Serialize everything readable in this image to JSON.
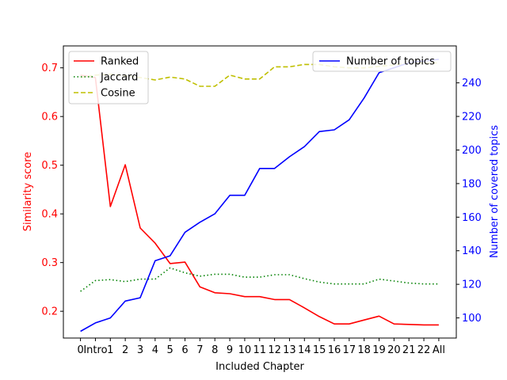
{
  "chart_data": {
    "type": "line",
    "categories": [
      "0",
      "Intro",
      "1",
      "2",
      "3",
      "4",
      "5",
      "6",
      "7",
      "8",
      "9",
      "10",
      "11",
      "12",
      "13",
      "14",
      "15",
      "16",
      "17",
      "18",
      "19",
      "20",
      "21",
      "22",
      "All"
    ],
    "xlabel": "Included Chapter",
    "ylabel_left": "Similarity score",
    "ylabel_right": "Number of covered topics",
    "ylim_left": [
      0.145,
      0.745
    ],
    "ylim_right": [
      88.0,
      262.0
    ],
    "yticks_left": [
      "0.2",
      "0.3",
      "0.4",
      "0.5",
      "0.6",
      "0.7"
    ],
    "yticks_right": [
      "100",
      "120",
      "140",
      "160",
      "180",
      "200",
      "220",
      "240"
    ],
    "colors": {
      "left_axis": "#ff0000",
      "right_axis": "#0000ff"
    },
    "series_left": [
      {
        "name": "Ranked",
        "color": "#ff0000",
        "style": "solid",
        "values": [
          0.685,
          0.68,
          0.415,
          0.501,
          0.371,
          0.34,
          0.298,
          0.301,
          0.25,
          0.238,
          0.236,
          0.23,
          0.23,
          0.224,
          0.224,
          0.207,
          0.189,
          0.174,
          0.174,
          0.182,
          0.19,
          0.174,
          0.173,
          0.172,
          0.172
        ]
      },
      {
        "name": "Jaccard",
        "color": "#008000",
        "style": "dotted",
        "values": [
          0.241,
          0.263,
          0.265,
          0.261,
          0.266,
          0.266,
          0.289,
          0.279,
          0.272,
          0.276,
          0.276,
          0.27,
          0.27,
          0.275,
          0.275,
          0.267,
          0.26,
          0.256,
          0.256,
          0.256,
          0.266,
          0.262,
          0.258,
          0.256,
          0.256
        ]
      },
      {
        "name": "Cosine",
        "color": "#bfbf00",
        "style": "dashed",
        "values": [
          0.68,
          0.685,
          0.687,
          0.684,
          0.68,
          0.675,
          0.681,
          0.677,
          0.662,
          0.662,
          0.685,
          0.677,
          0.677,
          0.702,
          0.702,
          0.707,
          0.707,
          0.702,
          0.7,
          0.7,
          0.703,
          0.706,
          0.71,
          0.71,
          0.71
        ]
      }
    ],
    "series_right": [
      {
        "name": "Number of topics",
        "color": "#0000ff",
        "style": "solid",
        "values": [
          92,
          97,
          100,
          110,
          112,
          134,
          137,
          151,
          157,
          162,
          173,
          173,
          189,
          189,
          196,
          202,
          211,
          212,
          218,
          231,
          246,
          249,
          252,
          253,
          254
        ]
      }
    ],
    "legend_left_position": "upper-left",
    "legend_right_position": "upper-right"
  }
}
